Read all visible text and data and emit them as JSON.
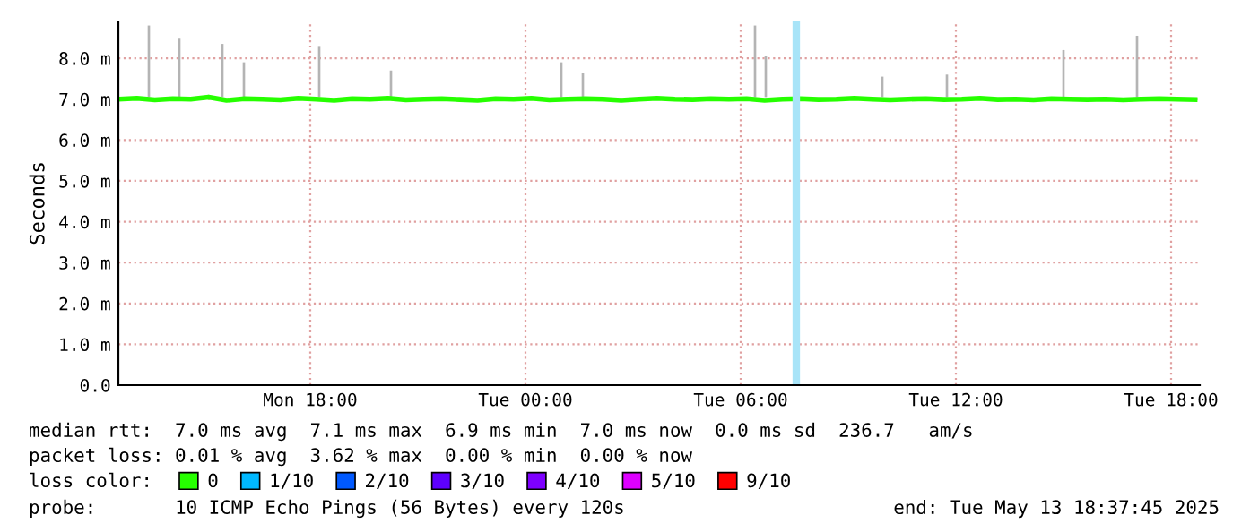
{
  "chart_data": {
    "type": "line",
    "ylabel": "Seconds",
    "legend_title": "loss color:",
    "legend": "bottom",
    "grid": true,
    "line_style": "solid",
    "marker": "none",
    "xlim": [
      "2025-05-12T12:39",
      "2025-05-13T18:48"
    ],
    "xticks": [
      {
        "value": "2025-05-12T18:00",
        "label": "Mon 18:00"
      },
      {
        "value": "2025-05-13T00:00",
        "label": "Tue 00:00"
      },
      {
        "value": "2025-05-13T06:00",
        "label": "Tue 06:00"
      },
      {
        "value": "2025-05-13T12:00",
        "label": "Tue 12:00"
      },
      {
        "value": "2025-05-13T18:00",
        "label": "Tue 18:00"
      }
    ],
    "ylim": [
      0,
      8.9
    ],
    "yticks": [
      {
        "value": 0,
        "label": "0.0"
      },
      {
        "value": 1,
        "label": "1.0 m"
      },
      {
        "value": 2,
        "label": "2.0 m"
      },
      {
        "value": 3,
        "label": "3.0 m"
      },
      {
        "value": 4,
        "label": "4.0 m"
      },
      {
        "value": 5,
        "label": "5.0 m"
      },
      {
        "value": 6,
        "label": "6.0 m"
      },
      {
        "value": 7,
        "label": "7.0 m"
      },
      {
        "value": 8,
        "label": "8.0 m"
      }
    ],
    "series": [
      {
        "type": "bar",
        "color": "#b4b4b4",
        "x": [
          "2025-05-12T13:30",
          "2025-05-12T14:21",
          "2025-05-12T15:33",
          "2025-05-12T16:09",
          "2025-05-12T18:15",
          "2025-05-12T20:15",
          "2025-05-13T01:00",
          "2025-05-13T01:36",
          "2025-05-13T06:24",
          "2025-05-13T06:42",
          "2025-05-13T09:57",
          "2025-05-13T11:45",
          "2025-05-13T15:00",
          "2025-05-13T17:03"
        ],
        "base": [
          7.05,
          7.05,
          7.05,
          7.05,
          7.05,
          7.05,
          7.05,
          7.05,
          7.05,
          7.05,
          7.05,
          7.05,
          7.05,
          7.05
        ],
        "values": [
          1.75,
          1.45,
          1.3,
          0.85,
          1.25,
          0.65,
          0.85,
          0.6,
          1.75,
          1.0,
          0.5,
          0.55,
          1.15,
          1.5
        ]
      },
      {
        "name": "0",
        "color": "#26ff00",
        "x": [
          "2025-05-12T12:40",
          "2025-05-12T13:10",
          "2025-05-12T13:40",
          "2025-05-12T14:10",
          "2025-05-12T14:40",
          "2025-05-12T15:10",
          "2025-05-12T15:40",
          "2025-05-12T16:10",
          "2025-05-12T16:40",
          "2025-05-12T17:10",
          "2025-05-12T17:40",
          "2025-05-12T18:10",
          "2025-05-12T18:40",
          "2025-05-12T19:10",
          "2025-05-12T19:40",
          "2025-05-12T20:10",
          "2025-05-12T20:40",
          "2025-05-12T21:10",
          "2025-05-12T21:40",
          "2025-05-12T22:10",
          "2025-05-12T22:40",
          "2025-05-12T23:10",
          "2025-05-12T23:40",
          "2025-05-13T00:10",
          "2025-05-13T00:40",
          "2025-05-13T01:10",
          "2025-05-13T01:40",
          "2025-05-13T02:10",
          "2025-05-13T02:40",
          "2025-05-13T03:10",
          "2025-05-13T03:40",
          "2025-05-13T04:10",
          "2025-05-13T04:40",
          "2025-05-13T05:10",
          "2025-05-13T05:40",
          "2025-05-13T06:10",
          "2025-05-13T06:40",
          "2025-05-13T07:10",
          "2025-05-13T07:40",
          "2025-05-13T08:10",
          "2025-05-13T08:40",
          "2025-05-13T09:10",
          "2025-05-13T09:40",
          "2025-05-13T10:10",
          "2025-05-13T10:40",
          "2025-05-13T11:10",
          "2025-05-13T11:40",
          "2025-05-13T12:10",
          "2025-05-13T12:40",
          "2025-05-13T13:10",
          "2025-05-13T13:40",
          "2025-05-13T14:10",
          "2025-05-13T14:40",
          "2025-05-13T15:10",
          "2025-05-13T15:40",
          "2025-05-13T16:10",
          "2025-05-13T16:40",
          "2025-05-13T17:10",
          "2025-05-13T17:40",
          "2025-05-13T18:10",
          "2025-05-13T18:40"
        ],
        "values": [
          7.0,
          7.02,
          6.98,
          7.01,
          7.0,
          7.05,
          6.97,
          7.01,
          7.0,
          6.98,
          7.02,
          7.0,
          6.97,
          7.01,
          7.0,
          7.02,
          6.98,
          7.0,
          7.01,
          6.99,
          6.97,
          7.01,
          7.0,
          7.02,
          6.98,
          7.0,
          7.01,
          7.0,
          6.97,
          7.0,
          7.02,
          7.0,
          6.99,
          7.01,
          7.0,
          7.01,
          6.97,
          7.0,
          7.01,
          6.99,
          7.0,
          7.02,
          7.0,
          6.98,
          7.0,
          7.01,
          6.99,
          7.0,
          7.02,
          6.99,
          7.0,
          6.98,
          7.01,
          7.0,
          6.99,
          7.0,
          6.98,
          7.0,
          7.01,
          7.0,
          6.99
        ]
      },
      {
        "name": "1/10",
        "color": "#00b8ff"
      },
      {
        "name": "2/10",
        "color": "#0059ff"
      },
      {
        "name": "3/10",
        "color": "#5e00ff"
      },
      {
        "name": "4/10",
        "color": "#7e00ff"
      },
      {
        "name": "5/10",
        "color": "#dd00ff"
      },
      {
        "name": "9/10",
        "color": "#ff0000"
      }
    ],
    "ref_lines": [
      {
        "axis": "x",
        "value": "2025-05-13T07:33",
        "color": "#a8e4f8"
      }
    ],
    "annotations": [
      "median rtt:  7.0 ms avg  7.1 ms max  6.9 ms min  7.0 ms now  0.0 ms sd  236.7   am/s",
      "packet loss: 0.01 % avg  3.62 % max  0.00 % min  0.00 % now",
      "probe:       10 ICMP Echo Pings (56 Bytes) every 120s",
      "end: Tue May 13 18:37:45 2025"
    ]
  }
}
